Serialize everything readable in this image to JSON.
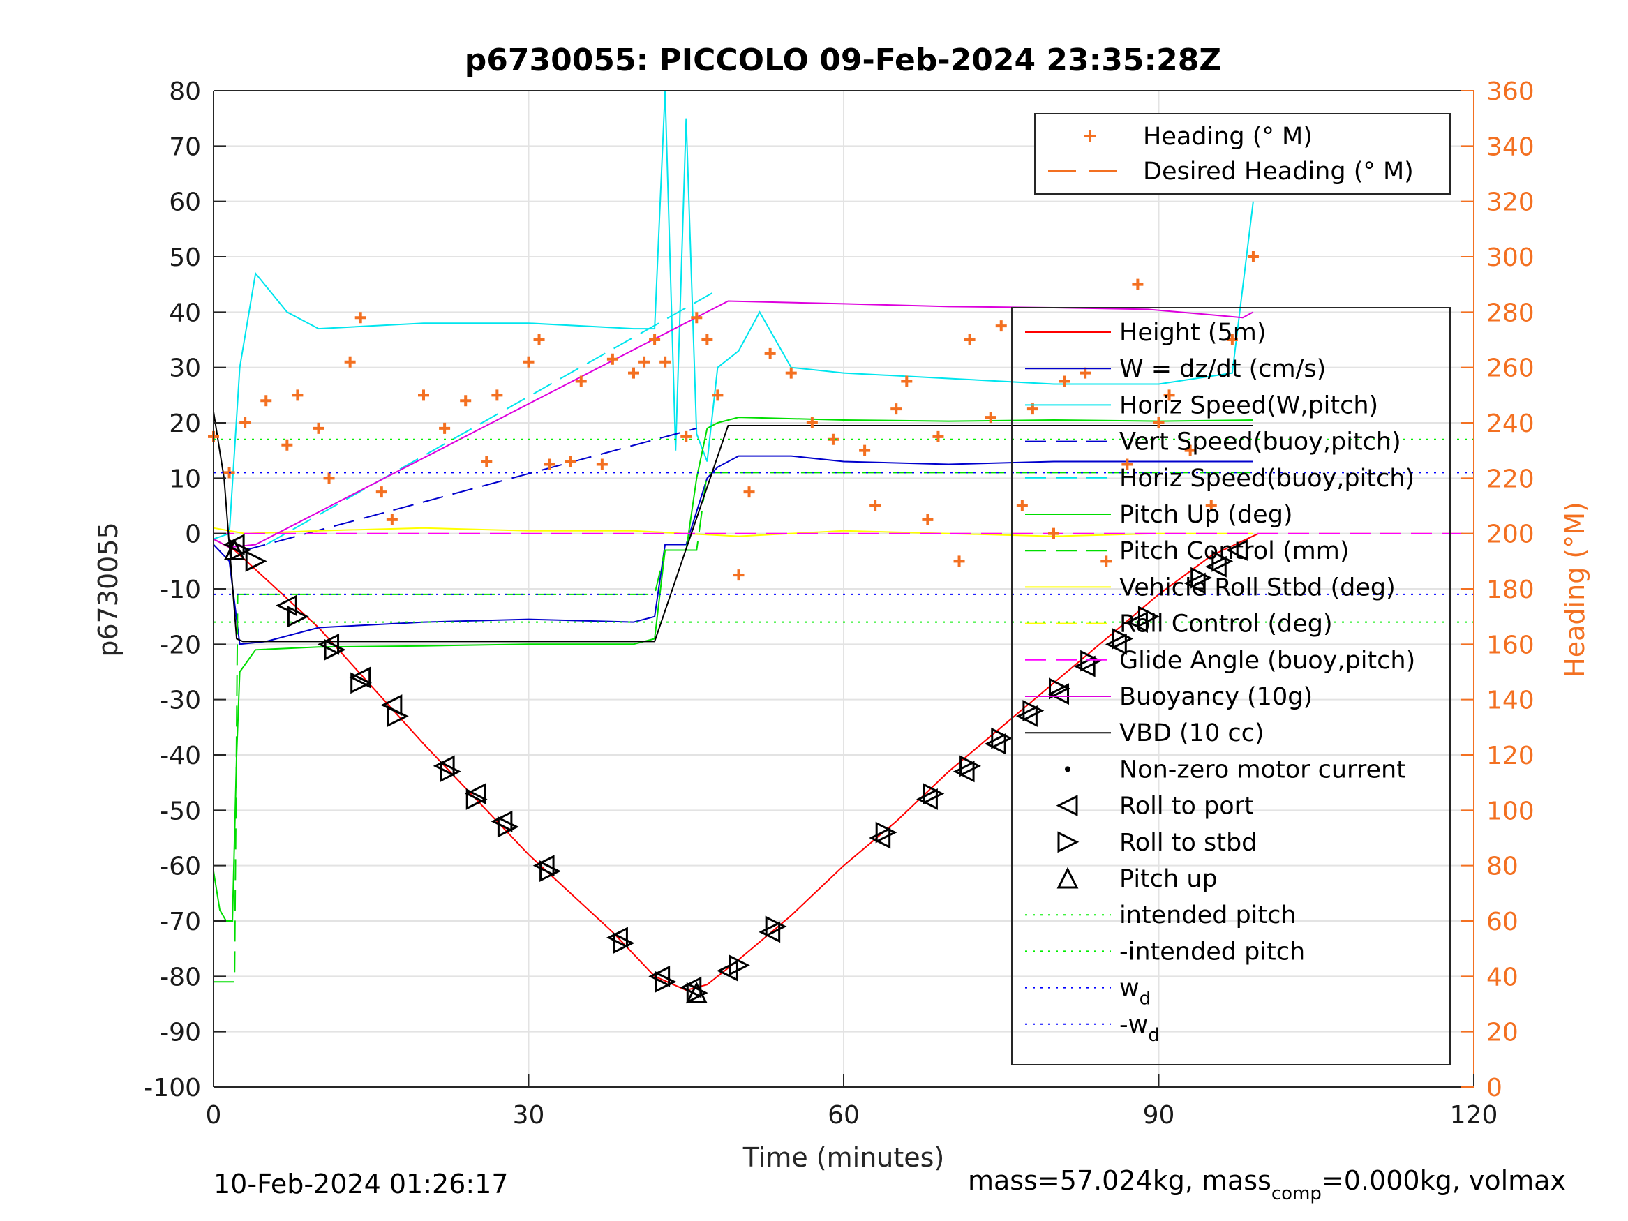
{
  "chart_data": {
    "type": "line",
    "title": "p6730055: PICCOLO 09-Feb-2024 23:35:28Z",
    "xlabel": "Time (minutes)",
    "ylabel": "p6730055",
    "y2label": "Heading (°M)",
    "xlim": [
      0,
      120
    ],
    "ylim": [
      -100,
      80
    ],
    "y2lim": [
      0,
      360
    ],
    "x_ticks": [
      0,
      30,
      60,
      90,
      120
    ],
    "y_ticks": [
      80,
      70,
      60,
      50,
      40,
      30,
      20,
      10,
      0,
      -10,
      -20,
      -30,
      -40,
      -50,
      -60,
      -70,
      -80,
      -90,
      -100
    ],
    "y2_ticks": [
      360,
      340,
      320,
      300,
      280,
      260,
      240,
      220,
      200,
      180,
      160,
      140,
      120,
      100,
      80,
      60,
      40,
      20,
      0
    ],
    "grid": true,
    "legend_top": {
      "placement": "top-right",
      "entries": [
        "Heading (° M)",
        "Desired Heading (° M)"
      ]
    },
    "legend_main": {
      "placement": "right",
      "entries": [
        "Height (5m)",
        "W = dz/dt (cm/s)",
        "Horiz Speed(W,pitch)",
        "Vert Speed(buoy,pitch)",
        "Horiz Speed(buoy,pitch)",
        "Pitch Up (deg)",
        "Pitch Control (mm)",
        "Vehicle Roll Stbd (deg)",
        "Roll Control (deg)",
        "Glide Angle (buoy,pitch)",
        "Buoyancy (10g)",
        "VBD (10 cc)",
        "Non-zero motor current",
        "Roll to port",
        "Roll to stbd",
        "Pitch up",
        "intended pitch",
        "-intended pitch",
        "w",
        "-w"
      ],
      "entry_subscripts": {
        "18": "d",
        "19": "d"
      }
    },
    "colors": {
      "height": "#ff0000",
      "w": "#0000cc",
      "horiz_speed": "#00e5ee",
      "pitch": "#00dd00",
      "roll": "#ffff00",
      "glide": "#ff00ff",
      "buoyancy": "#dd00dd",
      "vbd": "#000000",
      "heading": "#f37021",
      "intended_pitch": "#00ee00",
      "wd": "#0000ff"
    },
    "series": [
      {
        "name": "Height (5m)",
        "x": [
          0,
          2,
          10,
          20,
          30,
          38,
          42,
          45,
          47,
          50,
          55,
          60,
          65,
          70,
          75,
          80,
          85,
          90,
          95,
          99.5
        ],
        "y": [
          -1,
          -3,
          -17,
          -38,
          -58,
          -72,
          -80,
          -82.5,
          -81.5,
          -77,
          -69,
          -60,
          -52,
          -43,
          -35,
          -27,
          -19,
          -11,
          -4,
          0
        ]
      },
      {
        "name": "W = dz/dt (cm/s)",
        "x": [
          0,
          1.5,
          2.5,
          5,
          10,
          20,
          30,
          40,
          42,
          43,
          45,
          47,
          48,
          50,
          55,
          60,
          70,
          80,
          90,
          99
        ],
        "y": [
          -2,
          -5,
          -20,
          -19.5,
          -17,
          -16,
          -15.5,
          -16,
          -15,
          -2,
          -2,
          10,
          12,
          14,
          14,
          13,
          12.5,
          13,
          13,
          13
        ]
      },
      {
        "name": "Horiz Speed(W,pitch)",
        "x": [
          0,
          1.5,
          2.5,
          4,
          7,
          10,
          20,
          30,
          40,
          42,
          43,
          44,
          45,
          46,
          47,
          48,
          50,
          52,
          55,
          60,
          70,
          80,
          90,
          97,
          99
        ],
        "y": [
          -1,
          0,
          30,
          47,
          40,
          37,
          38,
          38,
          37,
          37,
          80,
          15,
          75,
          18,
          13,
          30,
          33,
          40,
          30,
          29,
          28,
          27,
          27,
          29,
          60
        ]
      },
      {
        "name": "Vert Speed(buoy,pitch)",
        "x": [
          3,
          46
        ],
        "y": [
          -3,
          19
        ]
      },
      {
        "name": "Horiz Speed(buoy,pitch)",
        "x": [
          5,
          48
        ],
        "y": [
          -2,
          44
        ]
      },
      {
        "name": "Pitch Up (deg)",
        "x": [
          0,
          0.6,
          1.2,
          1.8,
          2.2,
          2.5,
          4,
          10,
          20,
          30,
          40,
          42,
          43,
          45,
          46,
          47,
          48,
          50,
          60,
          70,
          80,
          90,
          99
        ],
        "y": [
          -61,
          -68,
          -70,
          -70,
          -40,
          -25,
          -21,
          -20.5,
          -20.3,
          -20,
          -20,
          -19,
          -3,
          -3,
          10,
          19,
          20,
          21,
          20.5,
          20.3,
          20.5,
          20.3,
          20.5
        ]
      },
      {
        "name": "Pitch Control (mm)",
        "x": [
          0,
          2,
          2.3,
          42,
          43,
          46,
          47,
          99
        ],
        "y": [
          -81,
          -81,
          -11,
          -11,
          -3,
          -3,
          11,
          11
        ]
      },
      {
        "name": "Vehicle Roll Stbd (deg)",
        "x": [
          0,
          3,
          10,
          20,
          30,
          40,
          45,
          50,
          60,
          70,
          80,
          90,
          99
        ],
        "y": [
          1,
          0,
          0.5,
          1,
          0.5,
          0.5,
          0,
          -0.5,
          0.5,
          0,
          -0.5,
          0,
          0
        ]
      },
      {
        "name": "Roll Control (deg)",
        "x": [
          0,
          120
        ],
        "y": [
          0,
          0
        ]
      },
      {
        "name": "Glide Angle (buoy,pitch)",
        "x": [
          0,
          120
        ],
        "y": [
          0,
          0
        ]
      },
      {
        "name": "Buoyancy (10g)",
        "x": [
          0,
          1.5,
          4,
          49,
          60,
          70,
          80,
          89,
          95,
          98,
          99
        ],
        "y": [
          -1,
          -2.5,
          -2,
          42,
          41.5,
          41,
          40.8,
          40.5,
          39.5,
          39,
          40
        ]
      },
      {
        "name": "VBD (10 cc)",
        "x": [
          0,
          1,
          2.2,
          2.8,
          42,
          49,
          99
        ],
        "y": [
          22,
          10,
          -19,
          -19.5,
          -19.5,
          19.5,
          19.5
        ]
      },
      {
        "name": "Heading (° M)",
        "axis": "right",
        "x": [
          0,
          1.5,
          3,
          5,
          7,
          8,
          10,
          11,
          13,
          14,
          16,
          17,
          20,
          22,
          24,
          26,
          27,
          30,
          31,
          32,
          34,
          35,
          37,
          38,
          40,
          41,
          42,
          43,
          45,
          46,
          47,
          48,
          50,
          51,
          53,
          55,
          57,
          59,
          62,
          63,
          65,
          66,
          68,
          69,
          71,
          72,
          74,
          75,
          77,
          78,
          80,
          81,
          83,
          85,
          87,
          88,
          90,
          91,
          93,
          95,
          97,
          99
        ],
        "y": [
          235,
          222,
          240,
          248,
          232,
          250,
          238,
          220,
          262,
          278,
          215,
          205,
          250,
          238,
          248,
          226,
          250,
          262,
          270,
          225,
          226,
          255,
          225,
          263,
          258,
          262,
          270,
          262,
          235,
          278,
          270,
          250,
          185,
          215,
          265,
          258,
          240,
          234,
          230,
          210,
          245,
          255,
          205,
          235,
          190,
          270,
          242,
          275,
          210,
          245,
          200,
          255,
          258,
          190,
          225,
          290,
          240,
          250,
          230,
          210,
          270,
          300
        ]
      },
      {
        "name": "intended pitch",
        "x": [
          0,
          120
        ],
        "y": [
          17,
          17
        ]
      },
      {
        "name": "-intended pitch",
        "x": [
          0,
          120
        ],
        "y": [
          -16,
          -16
        ]
      },
      {
        "name": "w",
        "x": [
          0,
          120
        ],
        "y": [
          11,
          11
        ]
      },
      {
        "name": "-w",
        "x": [
          0,
          120
        ],
        "y": [
          -11,
          -11
        ]
      }
    ],
    "markers": {
      "roll_to_port": {
        "x": [
          2,
          7,
          11,
          14,
          17,
          22,
          25,
          27.5,
          31.5,
          38.5,
          42.5,
          45.5,
          49,
          53,
          63.5,
          68,
          71.5,
          74.5,
          77.5,
          80.5,
          83,
          86,
          88,
          93.5,
          95.5,
          97.5
        ],
        "y": [
          -2,
          -13,
          -20,
          -26,
          -31,
          -42,
          -47,
          -52,
          -60,
          -73,
          -80,
          -82,
          -79,
          -72,
          -55,
          -48,
          -43,
          -38,
          -33,
          -29,
          -24,
          -20,
          -16,
          -9,
          -6,
          -3
        ]
      },
      "roll_to_stbd": {
        "x": [
          2.5,
          4,
          8,
          11.5,
          14,
          17.5,
          22.5,
          25,
          28,
          32,
          39,
          43,
          46,
          50,
          53.5,
          64,
          68.5,
          72,
          75,
          78,
          80.5,
          83.5,
          86.5,
          89,
          94,
          96
        ],
        "y": [
          -3,
          -5,
          -15,
          -21,
          -27,
          -33,
          -43,
          -48,
          -53,
          -61,
          -74,
          -81,
          -83,
          -78,
          -71,
          -54,
          -47,
          -42,
          -37,
          -32,
          -28,
          -23,
          -19,
          -15,
          -8,
          -5
        ]
      },
      "pitch_up": {
        "x": [
          2,
          46
        ],
        "y": [
          -3,
          -83
        ]
      }
    }
  },
  "footer": {
    "left": "10-Feb-2024 01:26:17",
    "right_pre": "mass=57.024kg, mass",
    "right_sub": "comp",
    "right_post": "=0.000kg, volmax"
  }
}
